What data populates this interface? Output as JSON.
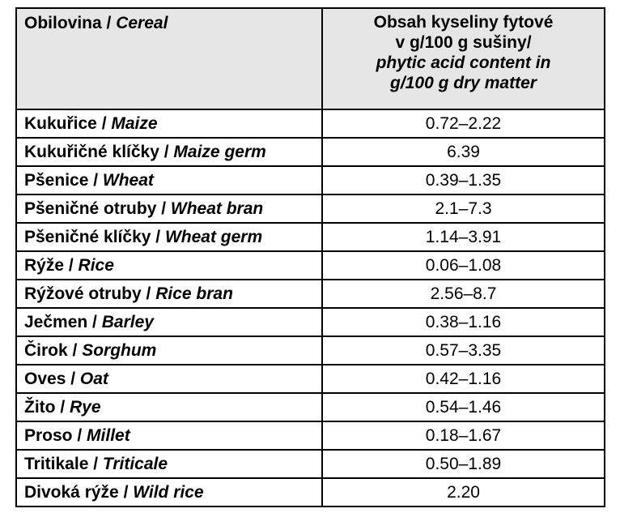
{
  "header": {
    "cereal_cz": "Obilovina / ",
    "cereal_en": "Cereal",
    "phytic_line1": "Obsah kyseliny fytové",
    "phytic_line2": "v g/100 g sušiny/",
    "phytic_line3": "phytic acid content in",
    "phytic_line4": "g/100 g dry matter"
  },
  "rows": [
    {
      "cz": "Kukuřice / ",
      "en": "Maize",
      "value": "0.72–2.22"
    },
    {
      "cz": "Kukuřičné klíčky / ",
      "en": "Maize germ",
      "value": "6.39"
    },
    {
      "cz": "Pšenice / ",
      "en": "Wheat",
      "value": "0.39–1.35"
    },
    {
      "cz": "Pšeničné otruby / ",
      "en": "Wheat bran",
      "value": "2.1–7.3"
    },
    {
      "cz": "Pšeničné klíčky / ",
      "en": "Wheat germ",
      "value": "1.14–3.91"
    },
    {
      "cz": "Rýže / ",
      "en": "Rice",
      "value": "0.06–1.08"
    },
    {
      "cz": "Rýžové otruby / ",
      "en": "Rice bran",
      "value": "2.56–8.7"
    },
    {
      "cz": "Ječmen / ",
      "en": "Barley",
      "value": "0.38–1.16"
    },
    {
      "cz": "Čirok / ",
      "en": "Sorghum",
      "value": "0.57–3.35"
    },
    {
      "cz": "Oves / ",
      "en": "Oat",
      "value": "0.42–1.16"
    },
    {
      "cz": "Žito / ",
      "en": "Rye",
      "value": "0.54–1.46"
    },
    {
      "cz": "Proso / ",
      "en": "Millet",
      "value": "0.18–1.67"
    },
    {
      "cz": "Tritikale / ",
      "en": "Triticale",
      "value": "0.50–1.89"
    },
    {
      "cz": "Divoká rýže / ",
      "en": "Wild rice",
      "value": "2.20"
    }
  ]
}
